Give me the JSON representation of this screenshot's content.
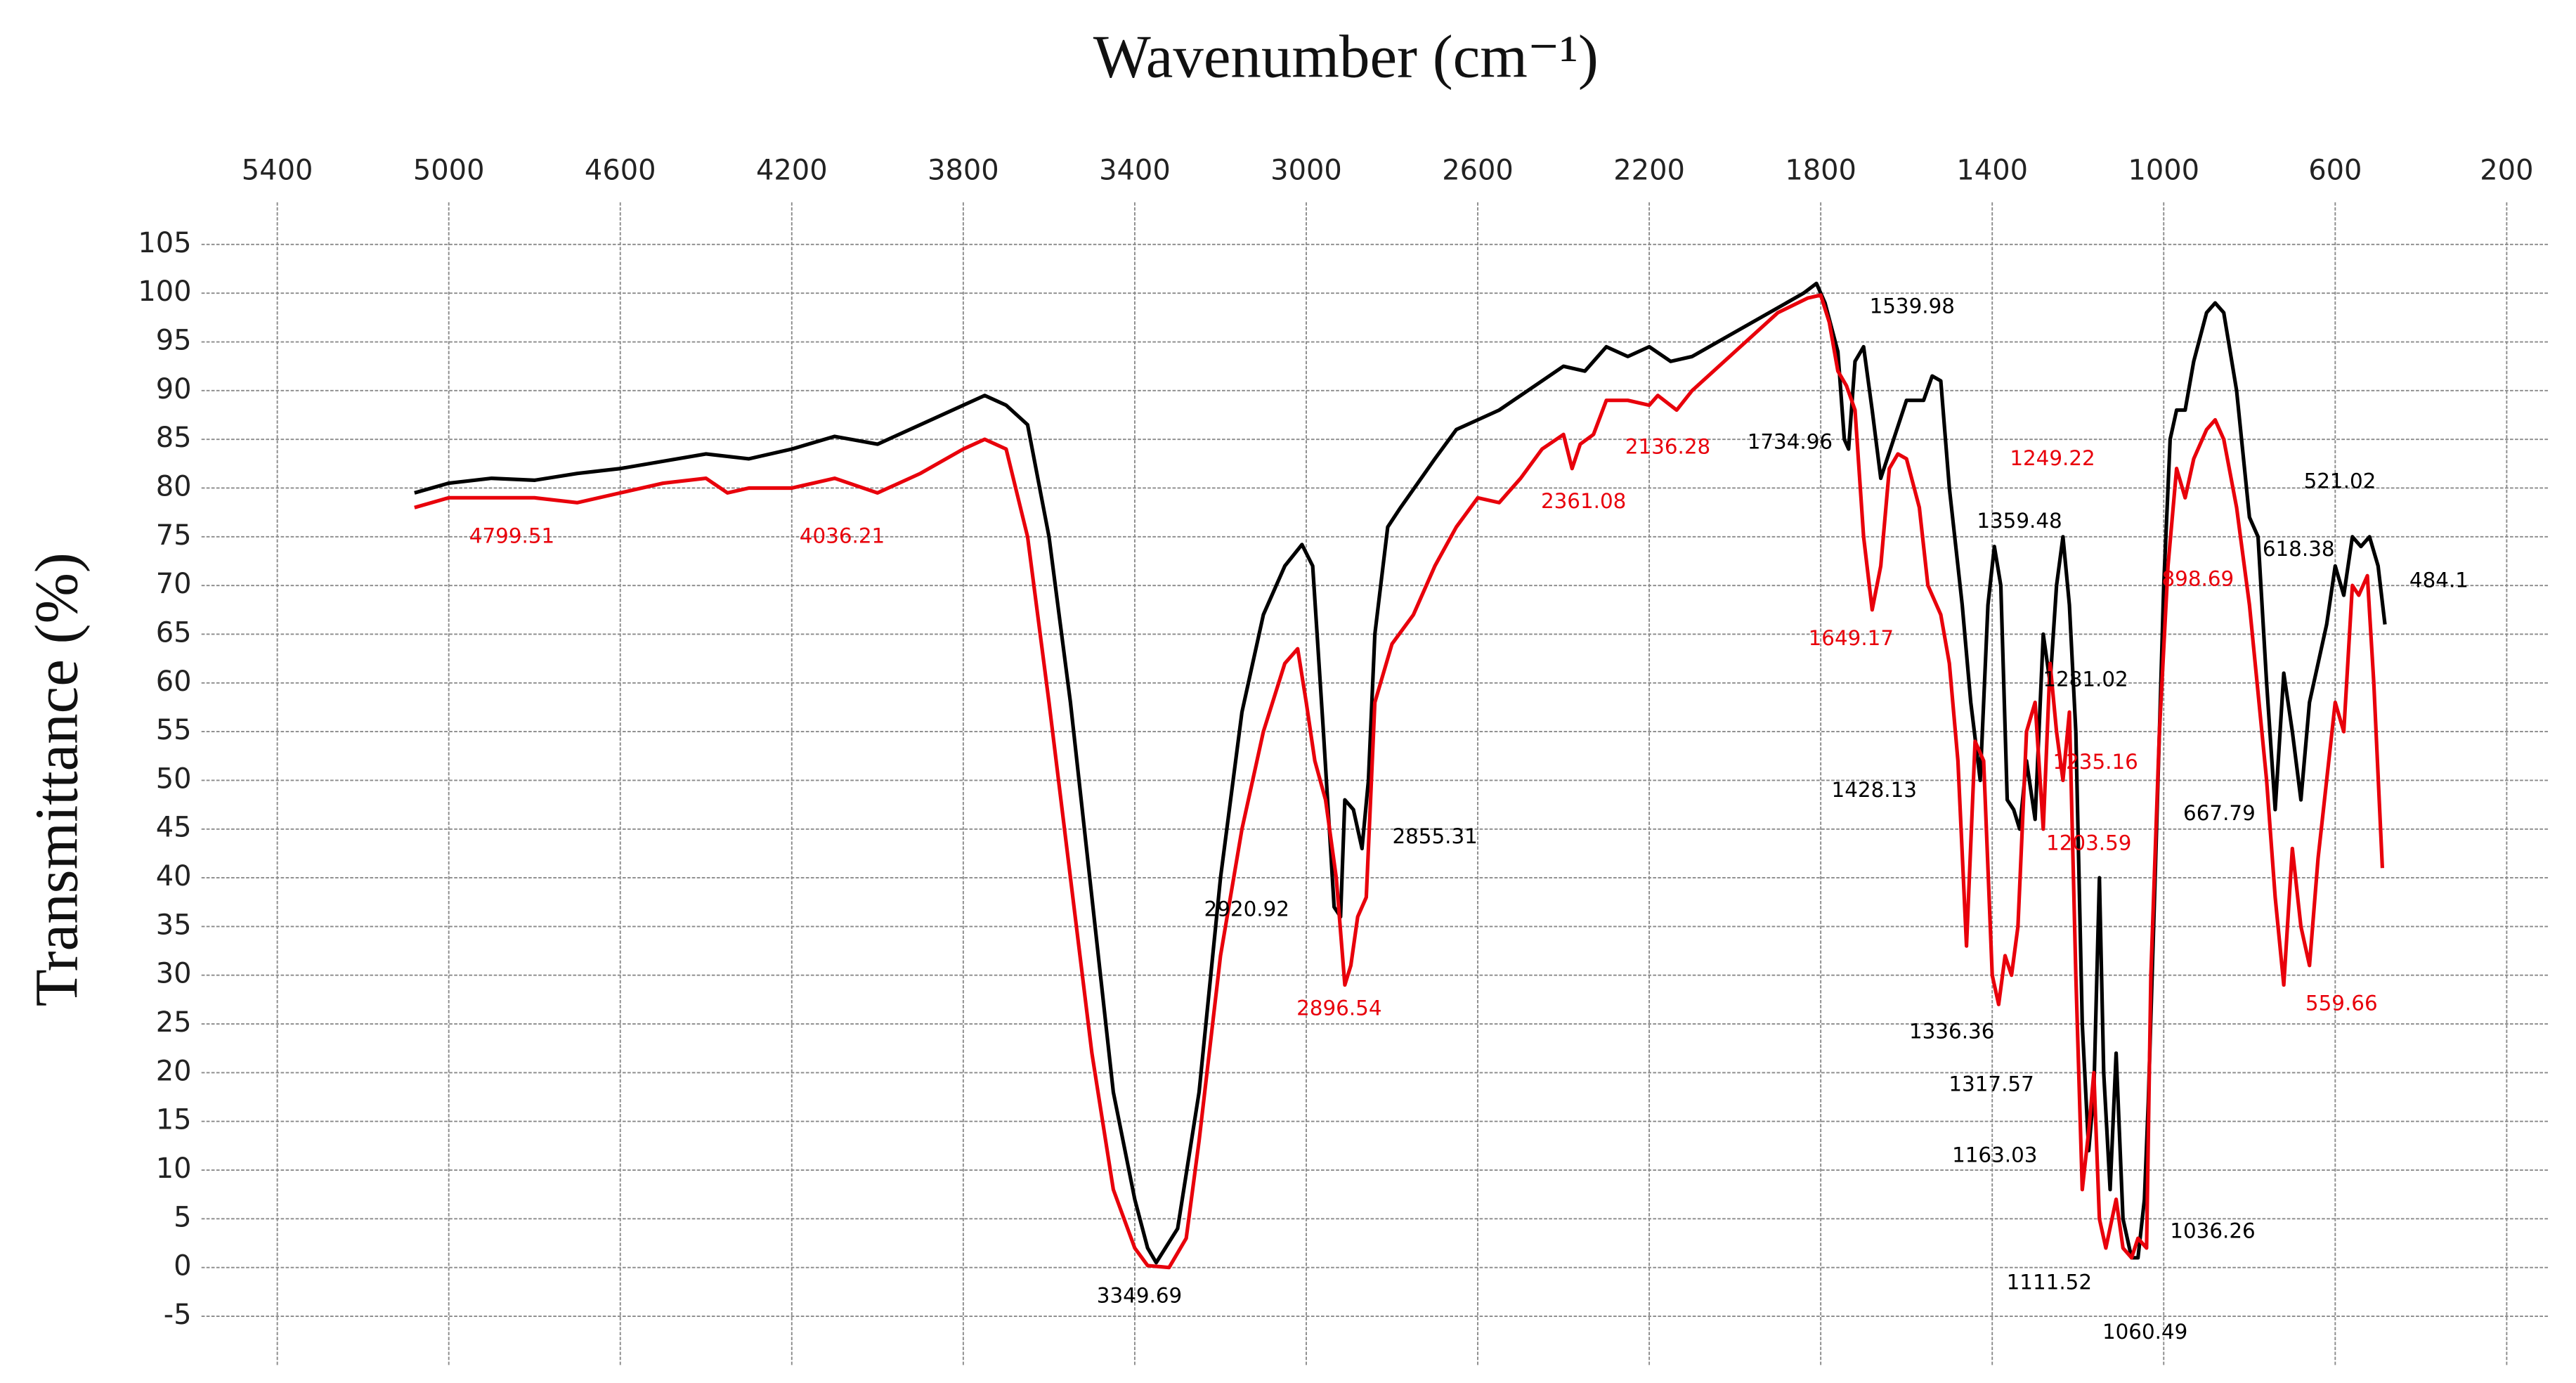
{
  "chart_data": {
    "type": "line",
    "title": "Wavenumber (cm⁻¹)",
    "y_label": "Transmittance (%)",
    "xlim": [
      5600,
      100
    ],
    "ylim": [
      -10,
      110
    ],
    "xticks": [
      5400,
      5000,
      4600,
      4200,
      3800,
      3400,
      3000,
      2600,
      2200,
      1800,
      1400,
      1000,
      600,
      200
    ],
    "yticks": [
      -5,
      0,
      5,
      10,
      15,
      20,
      25,
      30,
      35,
      40,
      45,
      50,
      55,
      60,
      65,
      70,
      75,
      80,
      85,
      90,
      95,
      100,
      105
    ],
    "grid": true,
    "series": [
      {
        "color": "#000000",
        "x": [
          5080,
          5000,
          4900,
          4800,
          4700,
          4600,
          4400,
          4300,
          4200,
          4100,
          4000,
          3900,
          3800,
          3750,
          3700,
          3650,
          3600,
          3550,
          3500,
          3450,
          3400,
          3370,
          3350,
          3300,
          3250,
          3200,
          3150,
          3100,
          3050,
          3010,
          2985,
          2960,
          2935,
          2920,
          2910,
          2890,
          2870,
          2855,
          2840,
          2810,
          2780,
          2700,
          2650,
          2600,
          2550,
          2450,
          2400,
          2350,
          2300,
          2250,
          2200,
          2150,
          2100,
          2000,
          1900,
          1840,
          1810,
          1790,
          1760,
          1745,
          1735,
          1720,
          1700,
          1680,
          1660,
          1630,
          1600,
          1560,
          1540,
          1520,
          1500,
          1470,
          1450,
          1428,
          1410,
          1395,
          1380,
          1365,
          1350,
          1336,
          1320,
          1300,
          1281,
          1265,
          1250,
          1235,
          1220,
          1205,
          1190,
          1175,
          1163,
          1150,
          1140,
          1125,
          1111,
          1095,
          1075,
          1060,
          1045,
          1036,
          1020,
          1000,
          985,
          970,
          950,
          930,
          900,
          880,
          860,
          830,
          800,
          780,
          760,
          740,
          720,
          700,
          680,
          660,
          640,
          620,
          600,
          580,
          560,
          540,
          520,
          500,
          484
        ],
        "values": [
          79.5,
          80.5,
          81,
          80.8,
          81.5,
          82,
          83.5,
          83,
          84,
          85.3,
          84.5,
          86.5,
          88.5,
          89.5,
          88.5,
          86.5,
          75,
          58,
          38,
          18,
          7,
          2,
          0.5,
          4,
          18,
          40,
          57,
          67,
          72,
          74.2,
          72,
          55,
          37,
          36,
          48,
          47,
          43,
          50,
          65,
          76,
          78,
          83,
          86,
          87,
          88,
          91,
          92.5,
          92,
          94.5,
          93.5,
          94.5,
          93,
          93.5,
          96,
          98.5,
          100,
          101,
          99,
          94,
          85,
          84,
          93,
          94.5,
          88,
          81,
          85,
          89,
          89,
          91.5,
          91,
          80,
          68,
          58,
          50,
          68,
          74,
          70,
          48,
          47,
          45,
          52,
          46,
          65,
          60,
          70,
          75,
          68,
          55,
          25,
          12,
          18,
          40,
          20,
          8,
          22,
          5,
          1,
          1,
          7,
          17,
          40,
          70,
          85,
          88,
          88,
          93,
          98,
          99,
          98,
          90,
          77,
          75,
          60,
          47,
          61,
          55,
          48,
          58,
          62,
          66,
          72,
          69,
          75,
          74,
          75,
          72,
          66
        ]
      },
      {
        "color": "#e8000b",
        "x": [
          5080,
          5000,
          4900,
          4800,
          4700,
          4600,
          4500,
          4400,
          4350,
          4300,
          4200,
          4100,
          4000,
          3900,
          3800,
          3750,
          3700,
          3650,
          3600,
          3550,
          3500,
          3450,
          3400,
          3370,
          3320,
          3280,
          3250,
          3200,
          3150,
          3100,
          3050,
          3020,
          3000,
          2980,
          2955,
          2930,
          2910,
          2896,
          2880,
          2860,
          2840,
          2800,
          2750,
          2700,
          2650,
          2600,
          2550,
          2500,
          2450,
          2400,
          2380,
          2361,
          2330,
          2300,
          2250,
          2200,
          2180,
          2136,
          2100,
          2000,
          1900,
          1830,
          1800,
          1780,
          1760,
          1740,
          1720,
          1700,
          1680,
          1660,
          1640,
          1620,
          1600,
          1570,
          1550,
          1520,
          1500,
          1480,
          1460,
          1440,
          1420,
          1400,
          1385,
          1370,
          1355,
          1340,
          1320,
          1300,
          1281,
          1265,
          1250,
          1235,
          1220,
          1205,
          1190,
          1175,
          1163,
          1150,
          1135,
          1111,
          1095,
          1075,
          1060,
          1040,
          1030,
          1010,
          990,
          970,
          950,
          930,
          900,
          880,
          860,
          830,
          800,
          780,
          760,
          740,
          720,
          700,
          680,
          660,
          640,
          620,
          600,
          580,
          560,
          545,
          525,
          510,
          490
        ],
        "values": [
          78,
          79,
          79,
          79,
          78.5,
          79.5,
          80.5,
          81,
          79.5,
          80,
          80,
          81,
          79.5,
          81.5,
          84,
          85,
          84,
          75,
          58,
          40,
          22,
          8,
          2,
          0.2,
          0,
          3,
          13,
          32,
          45,
          55,
          62,
          63.5,
          58,
          52,
          48,
          40,
          29,
          31,
          36,
          38,
          58,
          64,
          67,
          72,
          76,
          79,
          78.5,
          81,
          84,
          85.5,
          82,
          84.5,
          85.5,
          89,
          89,
          88.5,
          89.5,
          88,
          90,
          94,
          98,
          99.5,
          99.8,
          97,
          92,
          90.5,
          88,
          75,
          67.5,
          72,
          82,
          83.5,
          83,
          78,
          70,
          67,
          62,
          52,
          33,
          54,
          52,
          30,
          27,
          32,
          30,
          35,
          55,
          58,
          45,
          62,
          55,
          50,
          57,
          30,
          8,
          14,
          20,
          5,
          2,
          7,
          2,
          1,
          3,
          2,
          30,
          55,
          72,
          82,
          79,
          83,
          86,
          87,
          85,
          78,
          68,
          59,
          50,
          38,
          29,
          43,
          35,
          31,
          42,
          50,
          58,
          55,
          70,
          69,
          71,
          60,
          41
        ]
      }
    ],
    "annotations": [
      {
        "text": "4799.51",
        "color": "#e8000b"
      },
      {
        "text": "4036.21",
        "color": "#e8000b"
      },
      {
        "text": "3349.69",
        "color": "#000000"
      },
      {
        "text": "2920.92",
        "color": "#000000"
      },
      {
        "text": "2896.54",
        "color": "#e8000b"
      },
      {
        "text": "2855.31",
        "color": "#000000"
      },
      {
        "text": "2361.08",
        "color": "#e8000b"
      },
      {
        "text": "2136.28",
        "color": "#e8000b"
      },
      {
        "text": "1734.96",
        "color": "#000000"
      },
      {
        "text": "1539.98",
        "color": "#000000"
      },
      {
        "text": "1649.17",
        "color": "#e8000b"
      },
      {
        "text": "1249.22",
        "color": "#e8000b"
      },
      {
        "text": "1359.48",
        "color": "#000000"
      },
      {
        "text": "1281.02",
        "color": "#000000"
      },
      {
        "text": "1428.13",
        "color": "#000000"
      },
      {
        "text": "1235.16",
        "color": "#e8000b"
      },
      {
        "text": "1203.59",
        "color": "#e8000b"
      },
      {
        "text": "1336.36",
        "color": "#000000"
      },
      {
        "text": "1317.57",
        "color": "#000000"
      },
      {
        "text": "1163.03",
        "color": "#000000"
      },
      {
        "text": "1111.52",
        "color": "#000000"
      },
      {
        "text": "1060.49",
        "color": "#000000"
      },
      {
        "text": "1036.26",
        "color": "#000000"
      },
      {
        "text": "898.69",
        "color": "#e8000b"
      },
      {
        "text": "667.79",
        "color": "#000000"
      },
      {
        "text": "618.38",
        "color": "#000000"
      },
      {
        "text": "521.02",
        "color": "#000000"
      },
      {
        "text": "484.1",
        "color": "#000000"
      },
      {
        "text": "559.66",
        "color": "#e8000b"
      }
    ]
  }
}
